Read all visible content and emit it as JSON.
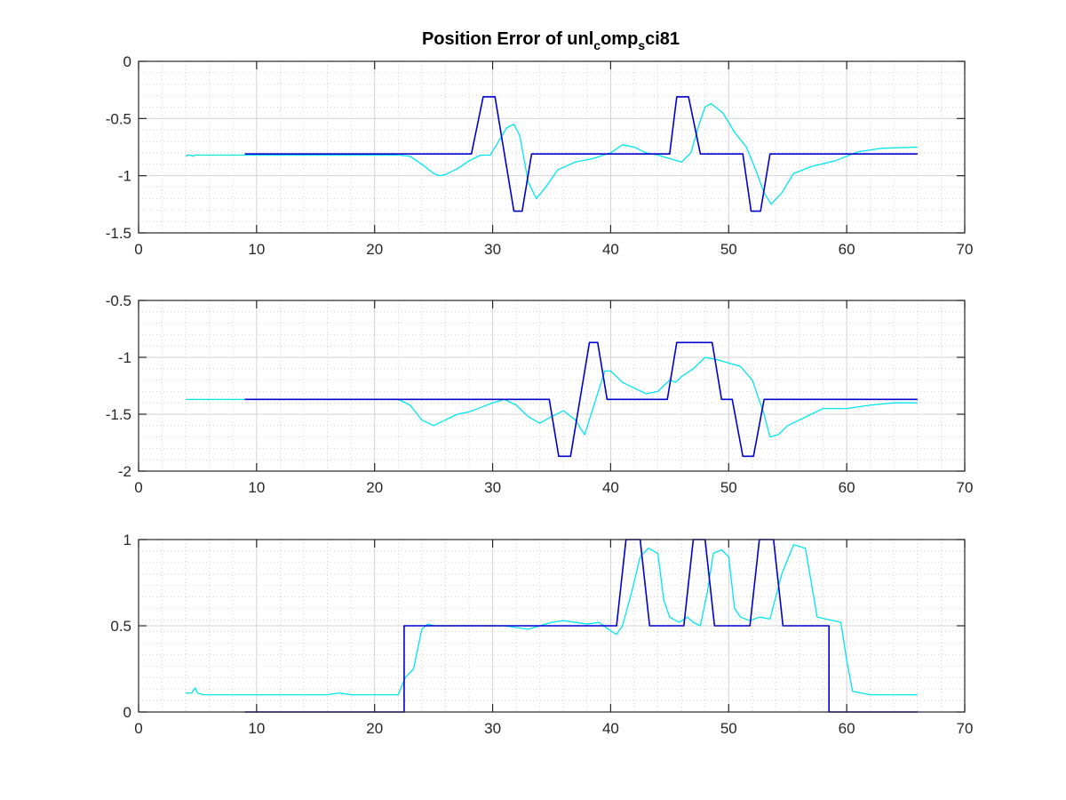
{
  "figure": {
    "title_main": "Position Error of unl",
    "title_sub1": "c",
    "title_mid": "omp",
    "title_sub2": "s",
    "title_end": "ci81"
  },
  "chart_data": [
    {
      "type": "line",
      "grid": true,
      "xlim": [
        0,
        70
      ],
      "ylim": [
        -1.5,
        0
      ],
      "xticks": [
        0,
        10,
        20,
        30,
        40,
        50,
        60,
        70
      ],
      "yticks": [
        0,
        -0.5,
        -1,
        -1.5
      ],
      "xtick_labels": [
        "0",
        "10",
        "20",
        "30",
        "40",
        "50",
        "60",
        "70"
      ],
      "ytick_labels": [
        "0",
        "-0.5",
        "-1",
        "-1.5"
      ],
      "series": [
        {
          "color": "#00e5ee",
          "x": [
            4,
            4.2,
            4.4,
            4.6,
            4.8,
            5,
            8,
            12,
            16,
            20,
            22,
            23,
            24,
            25,
            25.5,
            26,
            27,
            28,
            29,
            29.8,
            30.5,
            31.2,
            31.8,
            32.3,
            33,
            33.7,
            34.5,
            35.5,
            37,
            38.5,
            40,
            41,
            42,
            43,
            44,
            45,
            46,
            46.8,
            47.5,
            48,
            48.5,
            49.5,
            50.5,
            51.5,
            52.3,
            53,
            53.6,
            54.5,
            55.5,
            57,
            59,
            61,
            63,
            66
          ],
          "y": [
            -0.83,
            -0.82,
            -0.82,
            -0.83,
            -0.82,
            -0.82,
            -0.82,
            -0.82,
            -0.82,
            -0.82,
            -0.82,
            -0.83,
            -0.9,
            -0.98,
            -1.0,
            -0.99,
            -0.94,
            -0.87,
            -0.82,
            -0.82,
            -0.7,
            -0.58,
            -0.55,
            -0.65,
            -1.05,
            -1.2,
            -1.1,
            -0.95,
            -0.88,
            -0.85,
            -0.8,
            -0.73,
            -0.75,
            -0.8,
            -0.82,
            -0.85,
            -0.88,
            -0.8,
            -0.55,
            -0.4,
            -0.37,
            -0.45,
            -0.62,
            -0.75,
            -0.95,
            -1.15,
            -1.25,
            -1.15,
            -0.98,
            -0.92,
            -0.87,
            -0.79,
            -0.76,
            -0.75
          ]
        },
        {
          "color": "#0000cd",
          "x": [
            9,
            28.2,
            29.2,
            30.2,
            31,
            31.8,
            32.5,
            33.3,
            45,
            45.6,
            46.6,
            47.6,
            48.4,
            51.2,
            51.9,
            52.7,
            53.5,
            66
          ],
          "y": [
            -0.81,
            -0.81,
            -0.31,
            -0.31,
            -0.81,
            -1.31,
            -1.31,
            -0.81,
            -0.81,
            -0.31,
            -0.31,
            -0.81,
            -0.81,
            -0.81,
            -1.31,
            -1.31,
            -0.81,
            -0.81
          ]
        }
      ]
    },
    {
      "type": "line",
      "grid": true,
      "xlim": [
        0,
        70
      ],
      "ylim": [
        -2,
        -0.5
      ],
      "xticks": [
        0,
        10,
        20,
        30,
        40,
        50,
        60,
        70
      ],
      "yticks": [
        -0.5,
        -1,
        -1.5,
        -2
      ],
      "xtick_labels": [
        "0",
        "10",
        "20",
        "30",
        "40",
        "50",
        "60",
        "70"
      ],
      "ytick_labels": [
        "-0.5",
        "-1",
        "-1.5",
        "-2"
      ],
      "series": [
        {
          "color": "#00e5ee",
          "x": [
            4,
            8,
            12,
            16,
            20,
            22,
            23,
            24,
            25,
            26,
            27,
            28,
            29,
            30,
            31,
            32,
            33,
            34,
            35,
            36,
            37,
            37.8,
            38.5,
            39.5,
            40,
            41,
            42,
            43,
            44,
            45,
            45.5,
            46,
            47,
            48,
            49,
            50,
            51,
            52,
            53,
            53.5,
            54.2,
            55,
            56,
            57,
            58,
            60,
            62,
            64,
            66
          ],
          "y": [
            -1.37,
            -1.37,
            -1.37,
            -1.37,
            -1.37,
            -1.37,
            -1.42,
            -1.55,
            -1.6,
            -1.55,
            -1.5,
            -1.48,
            -1.44,
            -1.4,
            -1.37,
            -1.42,
            -1.52,
            -1.58,
            -1.52,
            -1.47,
            -1.55,
            -1.68,
            -1.45,
            -1.12,
            -1.12,
            -1.22,
            -1.27,
            -1.32,
            -1.3,
            -1.2,
            -1.22,
            -1.17,
            -1.1,
            -1.0,
            -1.02,
            -1.05,
            -1.08,
            -1.2,
            -1.5,
            -1.7,
            -1.68,
            -1.6,
            -1.55,
            -1.5,
            -1.45,
            -1.45,
            -1.42,
            -1.4,
            -1.4
          ]
        },
        {
          "color": "#0000cd",
          "x": [
            9,
            34.8,
            35.6,
            36.6,
            37.4,
            38.2,
            38.9,
            39.7,
            44.8,
            45.6,
            48.6,
            49.4,
            50.3,
            51.2,
            52.1,
            53.0,
            53.8,
            66
          ],
          "y": [
            -1.37,
            -1.37,
            -1.87,
            -1.87,
            -1.37,
            -0.87,
            -0.87,
            -1.37,
            -1.37,
            -0.87,
            -0.87,
            -1.37,
            -1.37,
            -1.87,
            -1.87,
            -1.37,
            -1.37,
            -1.37
          ]
        }
      ]
    },
    {
      "type": "line",
      "grid": true,
      "xlim": [
        0,
        70
      ],
      "ylim": [
        0,
        1
      ],
      "xticks": [
        0,
        10,
        20,
        30,
        40,
        50,
        60,
        70
      ],
      "yticks": [
        1,
        0.5,
        0
      ],
      "xtick_labels": [
        "0",
        "10",
        "20",
        "30",
        "40",
        "50",
        "60",
        "70"
      ],
      "ytick_labels": [
        "1",
        "0.5",
        "0"
      ],
      "series": [
        {
          "color": "#00e5ee",
          "x": [
            4,
            4.5,
            4.8,
            5,
            5.5,
            8,
            12,
            16,
            17,
            18,
            20,
            22,
            22.6,
            23.3,
            24,
            24.5,
            25,
            28,
            31,
            33,
            35,
            36,
            38,
            39,
            40,
            40.5,
            41,
            41.8,
            42.5,
            43.2,
            44,
            44.5,
            45,
            45.8,
            46.5,
            47,
            47.6,
            48.2,
            48.7,
            49.4,
            50,
            50.5,
            51,
            51.8,
            52.6,
            53.5,
            54.5,
            55.5,
            56.5,
            57.5,
            59.5,
            60,
            60.5,
            62,
            64,
            66
          ],
          "y": [
            0.11,
            0.11,
            0.14,
            0.11,
            0.1,
            0.1,
            0.1,
            0.1,
            0.11,
            0.1,
            0.1,
            0.1,
            0.2,
            0.25,
            0.48,
            0.51,
            0.5,
            0.5,
            0.5,
            0.48,
            0.52,
            0.53,
            0.51,
            0.52,
            0.47,
            0.45,
            0.5,
            0.7,
            0.9,
            0.95,
            0.92,
            0.65,
            0.55,
            0.52,
            0.55,
            0.52,
            0.5,
            0.7,
            0.92,
            0.94,
            0.9,
            0.6,
            0.55,
            0.53,
            0.55,
            0.54,
            0.8,
            0.97,
            0.95,
            0.55,
            0.52,
            0.3,
            0.12,
            0.1,
            0.1,
            0.1
          ]
        },
        {
          "color": "#0000cd",
          "x": [
            9,
            22.5,
            22.5,
            40.5,
            41.3,
            42.5,
            43.3,
            46.2,
            47.0,
            48.0,
            48.8,
            51.8,
            52.6,
            53.8,
            54.6,
            58.5,
            58.5,
            66
          ],
          "y": [
            0,
            0,
            0.5,
            0.5,
            1,
            1,
            0.5,
            0.5,
            1,
            1,
            0.5,
            0.5,
            1,
            1,
            0.5,
            0.5,
            0,
            0
          ]
        }
      ]
    }
  ]
}
